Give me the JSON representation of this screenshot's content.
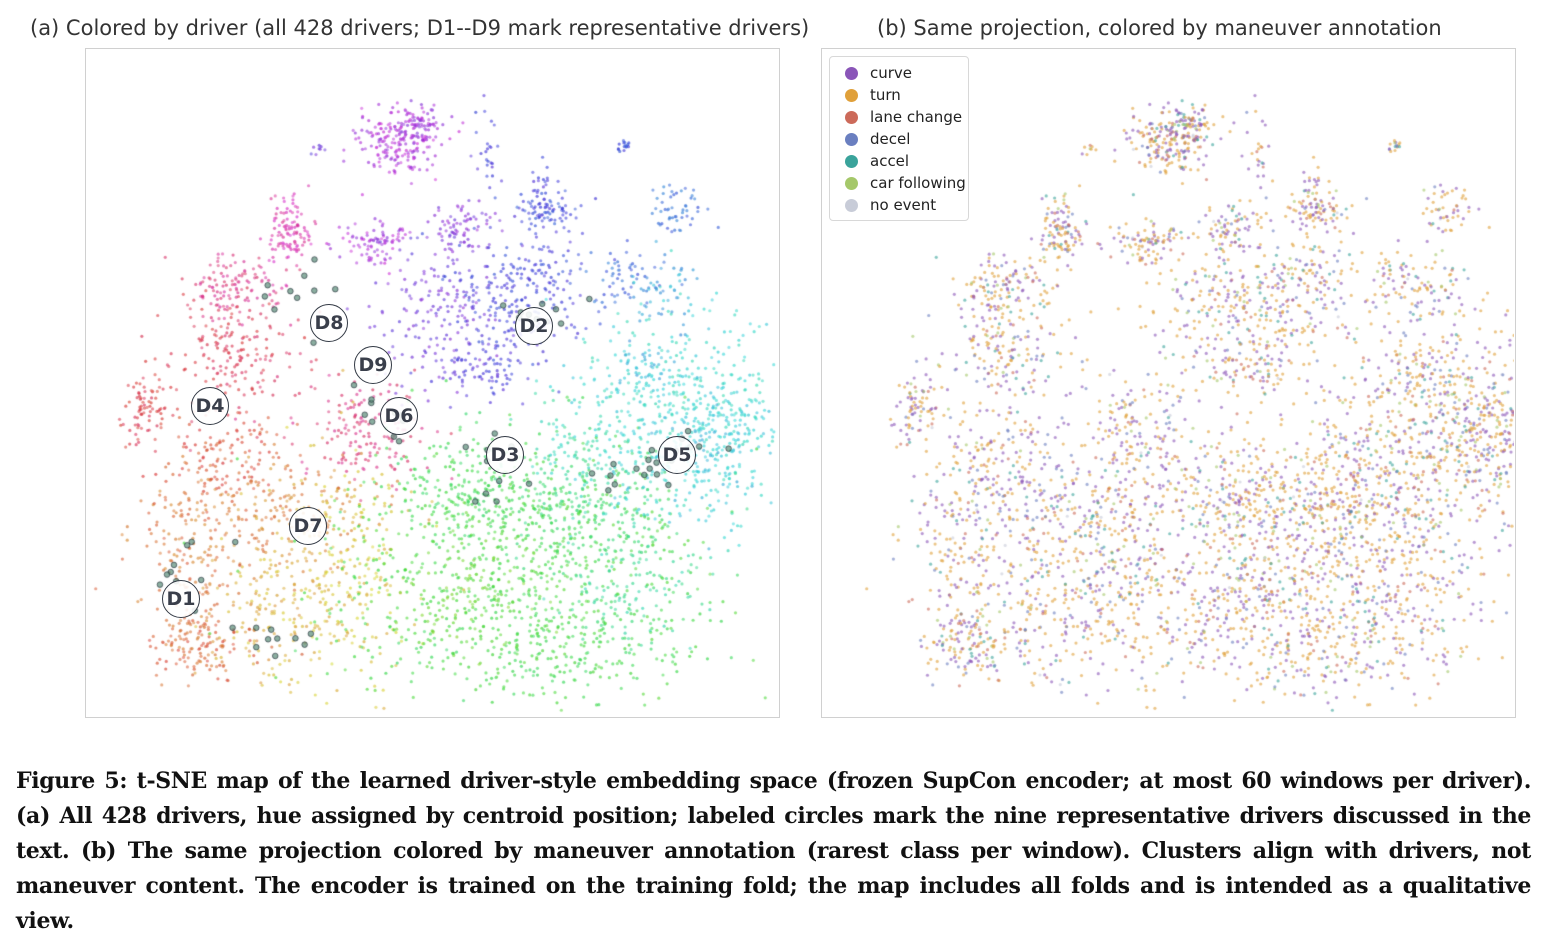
{
  "panel_a": {
    "title": "(a) Colored by driver (all 428 drivers; D1--D9 mark representative drivers)",
    "drivers": [
      {
        "label": "D1"
      },
      {
        "label": "D2"
      },
      {
        "label": "D3"
      },
      {
        "label": "D4"
      },
      {
        "label": "D5"
      },
      {
        "label": "D6"
      },
      {
        "label": "D7"
      },
      {
        "label": "D8"
      },
      {
        "label": "D9"
      }
    ]
  },
  "panel_b": {
    "title": "(b) Same projection, colored by maneuver annotation",
    "legend": [
      {
        "label": "curve",
        "color": "#8a55b8"
      },
      {
        "label": "turn",
        "color": "#e0a03a"
      },
      {
        "label": "lane change",
        "color": "#cc6a5a"
      },
      {
        "label": "decel",
        "color": "#6a7fc0"
      },
      {
        "label": "accel",
        "color": "#3aa39b"
      },
      {
        "label": "car following",
        "color": "#a5c86a"
      },
      {
        "label": "no event",
        "color": "#c8ccd8"
      }
    ]
  },
  "caption": "Figure 5: t-SNE map of the learned driver-style embedding space (frozen SupCon encoder; at most 60 windows per driver). (a) All 428 drivers, hue assigned by centroid position; labeled circles mark the nine representative drivers discussed in the text. (b) The same projection colored by maneuver annotation (rarest class per window). Clusters align with drivers, not maneuver content. The encoder is trained on the training fold; the map includes all folds and is intended as a qualitative view.",
  "chart_data": [
    {
      "type": "scatter",
      "title": "(a) Colored by driver (all 428 drivers; D1--D9 mark representative drivers)",
      "xlabel": "",
      "ylabel": "",
      "color_encoding": "driver identity (hue by centroid position)",
      "highlighted_drivers": [
        "D1",
        "D2",
        "D3",
        "D4",
        "D5",
        "D6",
        "D7",
        "D8",
        "D9"
      ],
      "grid": false
    },
    {
      "type": "scatter",
      "title": "(b) Same projection, colored by maneuver annotation",
      "xlabel": "",
      "ylabel": "",
      "series": [
        {
          "name": "curve",
          "color": "#8a55b8"
        },
        {
          "name": "turn",
          "color": "#e0a03a"
        },
        {
          "name": "lane change",
          "color": "#cc6a5a"
        },
        {
          "name": "decel",
          "color": "#6a7fc0"
        },
        {
          "name": "accel",
          "color": "#3aa39b"
        },
        {
          "name": "car following",
          "color": "#a5c86a"
        },
        {
          "name": "no event",
          "color": "#c8ccd8"
        }
      ],
      "legend_position": "top-left",
      "grid": false
    }
  ]
}
